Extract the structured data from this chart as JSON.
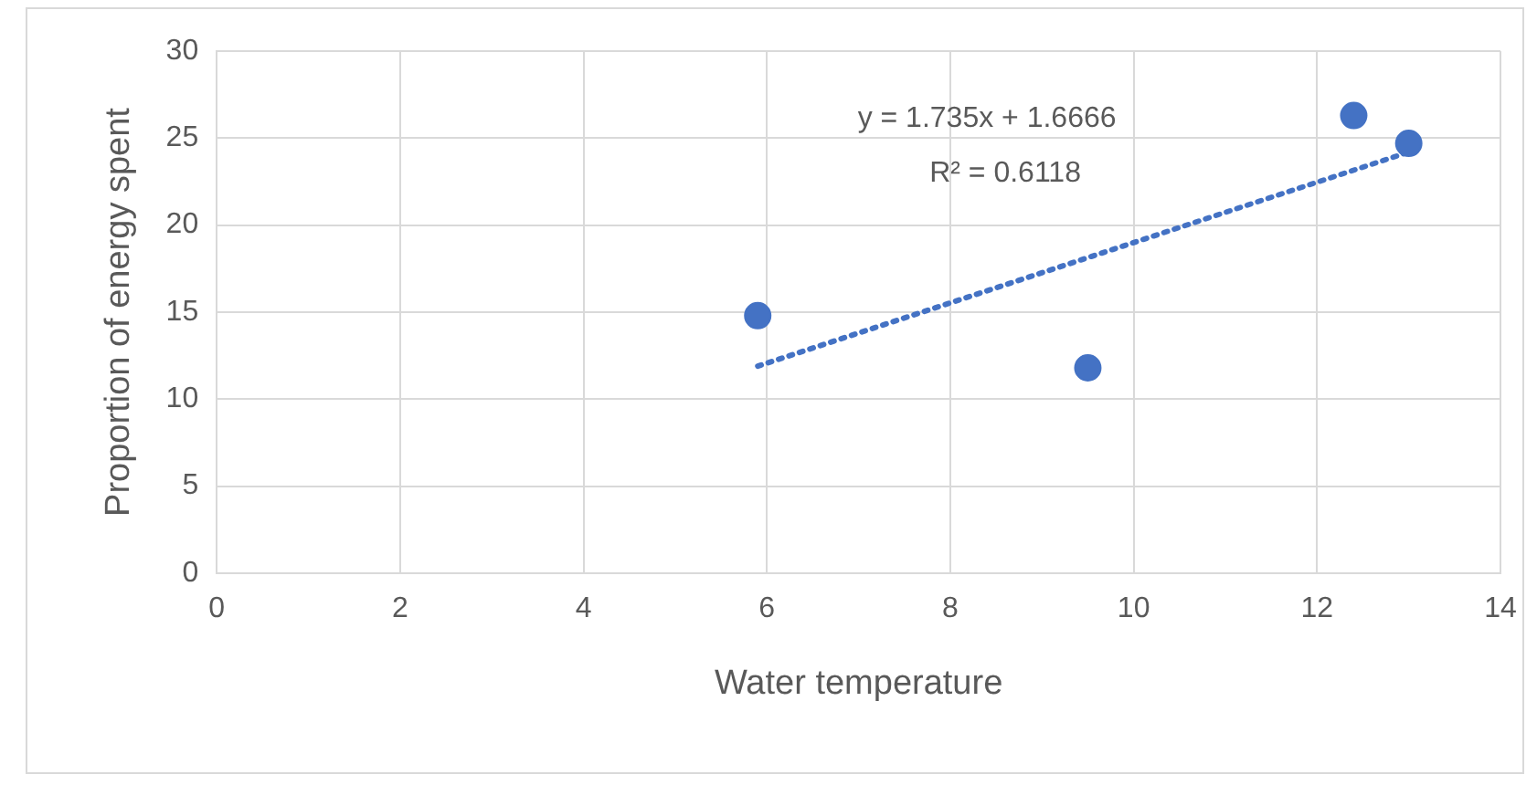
{
  "chart_data": {
    "type": "scatter",
    "xlabel": "Water temperature",
    "ylabel": "Proportion of energy spent",
    "series": [
      {
        "color": "#4472c4",
        "x": [
          5.9,
          9.5,
          12.4,
          13.0
        ],
        "values": [
          14.8,
          11.8,
          26.3,
          24.7
        ],
        "marker": "circle"
      },
      {
        "type": "line",
        "color": "#4472c4",
        "x": [
          5.9,
          13.0
        ],
        "values": [
          11.9,
          24.2
        ],
        "line_style": "dotted",
        "marker": "none"
      }
    ],
    "annotations": [
      "y = 1.735x + 1.6666",
      "R² = 0.6118"
    ],
    "xlim": [
      0,
      14
    ],
    "xticks": [
      0,
      2,
      4,
      6,
      8,
      10,
      12,
      14
    ],
    "ylim": [
      0,
      30
    ],
    "yticks": [
      0,
      5,
      10,
      15,
      20,
      25,
      30
    ],
    "grid": true,
    "legend": false
  }
}
